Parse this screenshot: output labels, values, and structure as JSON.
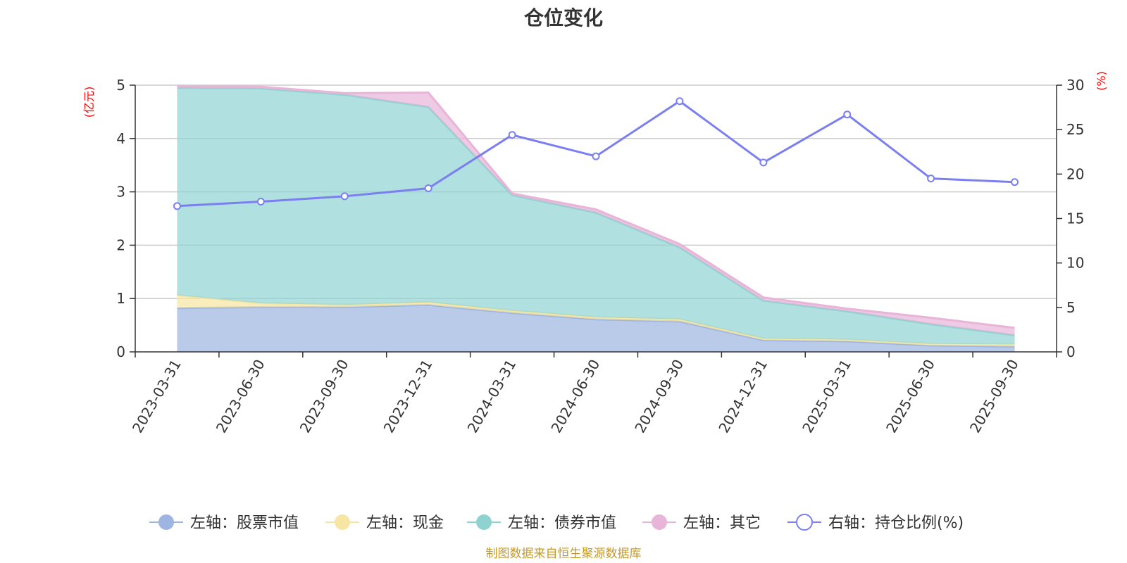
{
  "chart_data": {
    "type": "area",
    "title": "仓位变化",
    "categories": [
      "2023-03-31",
      "2023-06-30",
      "2023-09-30",
      "2023-12-31",
      "2024-03-31",
      "2024-06-30",
      "2024-09-30",
      "2024-12-31",
      "2025-03-31",
      "2025-06-30",
      "2025-09-30"
    ],
    "left_axis": {
      "unit_label": "(亿元)",
      "ylim": [
        0,
        5
      ],
      "ticks": [
        "0",
        "1",
        "2",
        "3",
        "4",
        "5"
      ]
    },
    "right_axis": {
      "unit_label": "(%)",
      "ylim": [
        0,
        30
      ],
      "ticks": [
        "0",
        "5",
        "10",
        "15",
        "20",
        "25",
        "30"
      ]
    },
    "stacked_series": [
      {
        "name": "左轴：股票市值",
        "color": "#9db5e0",
        "values": [
          0.82,
          0.84,
          0.84,
          0.88,
          0.73,
          0.61,
          0.57,
          0.22,
          0.2,
          0.12,
          0.1
        ]
      },
      {
        "name": "左轴：现金",
        "color": "#f7e6a3",
        "values": [
          0.24,
          0.07,
          0.04,
          0.05,
          0.04,
          0.04,
          0.04,
          0.03,
          0.03,
          0.03,
          0.04
        ]
      },
      {
        "name": "左轴：债券市值",
        "color": "#8fd3d1",
        "values": [
          3.89,
          4.03,
          3.94,
          3.66,
          2.17,
          1.96,
          1.35,
          0.71,
          0.53,
          0.37,
          0.17
        ]
      },
      {
        "name": "左轴：其它",
        "color": "#e8b4d8",
        "values": [
          0.03,
          0.03,
          0.03,
          0.27,
          0.03,
          0.06,
          0.06,
          0.06,
          0.05,
          0.12,
          0.14
        ]
      }
    ],
    "line_series": {
      "name": "右轴：持仓比例(%)",
      "color": "#7b7ff0",
      "values": [
        16.4,
        16.9,
        17.5,
        18.4,
        24.4,
        22.0,
        28.2,
        21.3,
        26.7,
        19.5,
        19.1
      ]
    },
    "grid": true,
    "legend_position": "bottom"
  },
  "source_note": "制图数据来自恒生聚源数据库"
}
